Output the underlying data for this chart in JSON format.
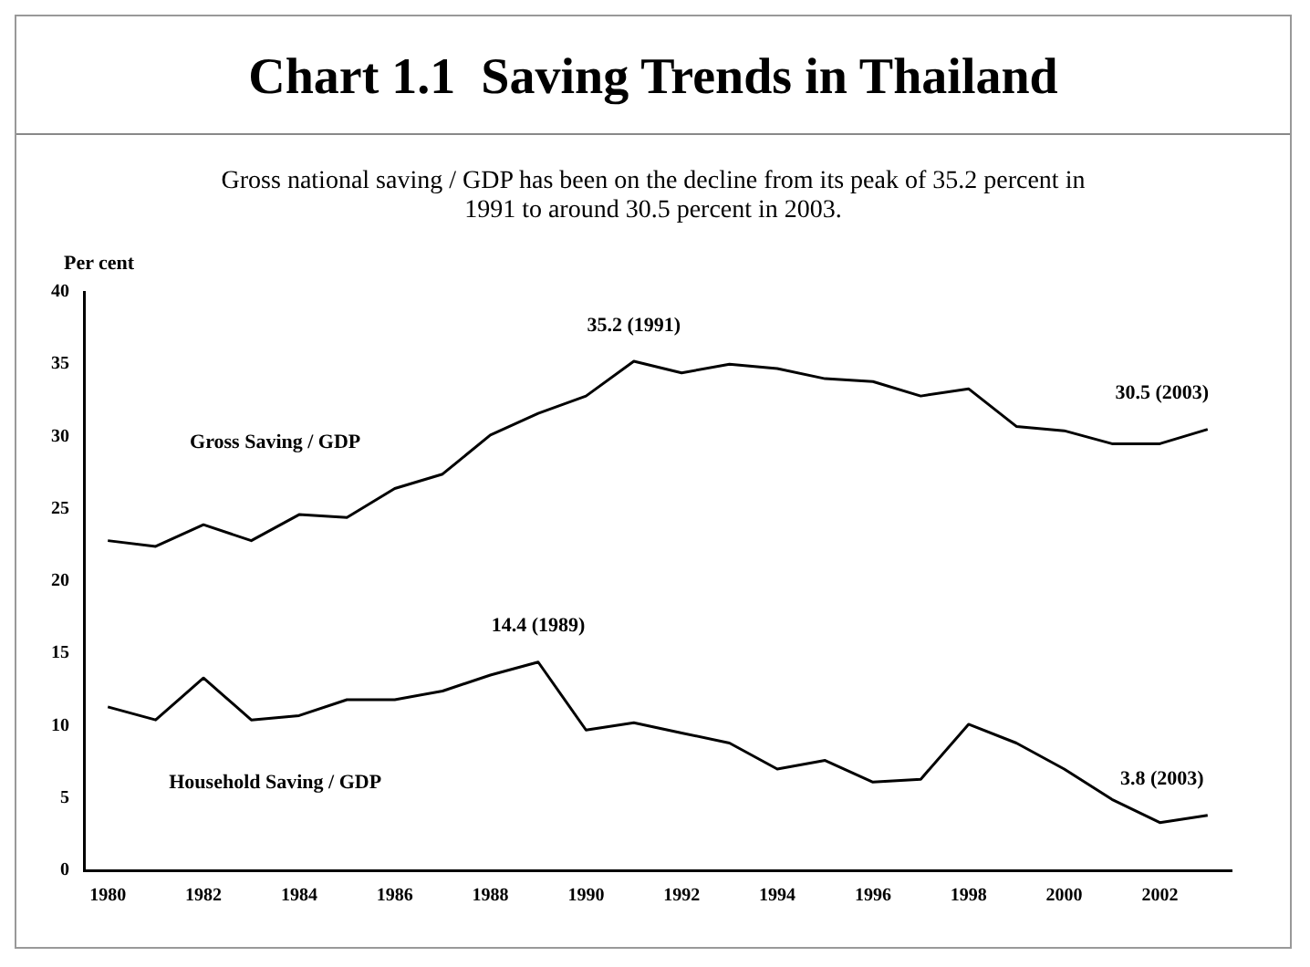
{
  "chart_data": {
    "type": "line",
    "title": "Chart 1.1  Saving Trends in Thailand",
    "subtitle": "Gross national saving / GDP has been on the decline from its peak of 35.2  percent in 1991 to around 30.5 percent in 2003.",
    "ylabel": "Per cent",
    "categories": [
      "1980",
      null,
      "1982",
      null,
      "1984",
      null,
      "1986",
      null,
      "1988",
      null,
      "1990",
      null,
      "1992",
      null,
      "1994",
      null,
      "1996",
      null,
      "1998",
      null,
      "2000",
      null,
      "2002",
      null
    ],
    "series": [
      {
        "name": "Gross Saving / GDP",
        "color": "#000000",
        "values": [
          22.8,
          22.4,
          23.9,
          22.8,
          24.6,
          24.4,
          26.4,
          27.4,
          30.1,
          31.6,
          32.8,
          35.2,
          34.4,
          35.0,
          34.7,
          34.0,
          33.8,
          32.8,
          33.3,
          30.7,
          30.4,
          29.5,
          29.5,
          30.5
        ]
      },
      {
        "name": "Household Saving / GDP",
        "color": "#000000",
        "values": [
          11.3,
          10.4,
          13.3,
          10.4,
          10.7,
          11.8,
          11.8,
          12.4,
          13.5,
          14.4,
          9.7,
          10.2,
          9.5,
          8.8,
          7.0,
          7.6,
          6.1,
          6.3,
          10.1,
          8.8,
          7.0,
          4.9,
          3.3,
          3.8
        ]
      }
    ],
    "annotations": [
      "35.2 (1991)",
      "14.4 (1989)",
      "30.5 (2003)",
      "3.8 (2003)"
    ],
    "ylim": [
      0,
      40
    ],
    "yticks": [
      0,
      5,
      10,
      15,
      20,
      25,
      30,
      35,
      40
    ],
    "grid": false,
    "legend": false,
    "marker": "none",
    "line_style": "solid"
  }
}
